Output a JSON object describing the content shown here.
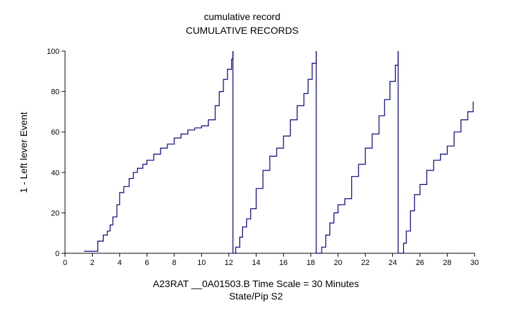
{
  "chart_data": {
    "type": "line",
    "title": "cumulative record",
    "subtitle": "CUMULATIVE RECORDS",
    "xlabel": "A23RAT __0A01503.B   Time Scale = 30 Minutes",
    "xlabel2": "State/Pip S2",
    "ylabel": "1 - Left lever  Event",
    "xlim": [
      0,
      30
    ],
    "ylim": [
      0,
      100
    ],
    "x_ticks": [
      "0",
      "2",
      "4",
      "6",
      "8",
      "10",
      "12",
      "14",
      "16",
      "18",
      "20",
      "22",
      "24",
      "26",
      "28",
      "30"
    ],
    "y_ticks": [
      "0",
      "20",
      "40",
      "60",
      "80",
      "100"
    ],
    "grid": false,
    "line_color": "#000080",
    "resets_at_x": [
      12.3,
      18.4,
      24.4
    ],
    "series": [
      {
        "segment": 1,
        "x": [
          1.4,
          2.0,
          2.4,
          2.6,
          2.8,
          3.1,
          3.3,
          3.5,
          3.8,
          4.0,
          4.3,
          4.7,
          5.0,
          5.3,
          5.7,
          6.0,
          6.5,
          7.0,
          7.5,
          8.0,
          8.5,
          9.0,
          9.5,
          10.0,
          10.5,
          11.0,
          11.3,
          11.6,
          11.9,
          12.2,
          12.3
        ],
        "y": [
          1,
          1,
          6,
          6,
          9,
          11,
          14,
          18,
          24,
          30,
          33,
          37,
          40,
          42,
          44,
          46,
          49,
          52,
          54,
          57,
          59,
          61,
          62,
          63,
          66,
          73,
          80,
          86,
          91,
          96,
          100
        ]
      },
      {
        "segment": 2,
        "x": [
          12.3,
          12.5,
          12.8,
          13.0,
          13.3,
          13.6,
          14.0,
          14.5,
          15.0,
          15.5,
          16.0,
          16.5,
          17.0,
          17.5,
          17.8,
          18.1,
          18.4
        ],
        "y": [
          0,
          3,
          8,
          13,
          17,
          22,
          32,
          41,
          48,
          52,
          58,
          66,
          73,
          79,
          86,
          94,
          100
        ]
      },
      {
        "segment": 3,
        "x": [
          18.4,
          18.8,
          19.1,
          19.4,
          19.7,
          20.0,
          20.5,
          21.0,
          21.5,
          22.0,
          22.5,
          23.0,
          23.4,
          23.8,
          24.2,
          24.4
        ],
        "y": [
          0,
          3,
          9,
          15,
          20,
          24,
          27,
          38,
          44,
          52,
          59,
          68,
          76,
          85,
          93,
          100
        ]
      },
      {
        "segment": 4,
        "x": [
          24.4,
          24.8,
          25.0,
          25.3,
          25.6,
          26.0,
          26.5,
          27.0,
          27.5,
          28.0,
          28.5,
          29.0,
          29.5,
          29.9
        ],
        "y": [
          0,
          5,
          11,
          21,
          29,
          34,
          41,
          46,
          49,
          53,
          60,
          66,
          70,
          75
        ]
      }
    ]
  }
}
